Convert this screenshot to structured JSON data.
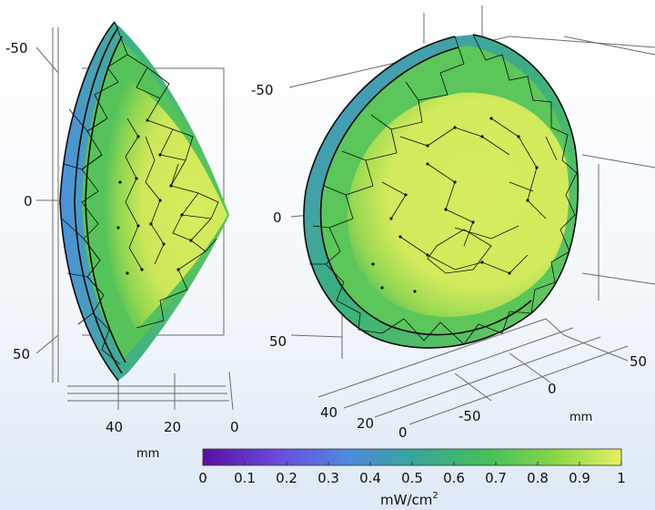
{
  "left_view": {
    "y_ticks": [
      "-50",
      "0",
      "50"
    ],
    "x_ticks": [
      "40",
      "20",
      "0"
    ],
    "unit": "mm"
  },
  "right_view": {
    "vertical_ticks": [
      "-50",
      "0",
      "50"
    ],
    "depth_ticks": [
      "40",
      "20",
      "0"
    ],
    "horizontal_ticks": [
      "-50",
      "0",
      "50"
    ],
    "unit": "mm"
  },
  "colorbar": {
    "ticks": [
      "0",
      "0.1",
      "0.2",
      "0.3",
      "0.4",
      "0.5",
      "0.6",
      "0.7",
      "0.8",
      "0.9",
      "1"
    ],
    "unit_base": "mW/cm",
    "unit_exp": "2",
    "min": 0,
    "max": 1,
    "colors": [
      "#5a0fa0",
      "#6a4be0",
      "#4e8be0",
      "#37a59a",
      "#45c05a",
      "#86d648",
      "#e6f060"
    ]
  }
}
